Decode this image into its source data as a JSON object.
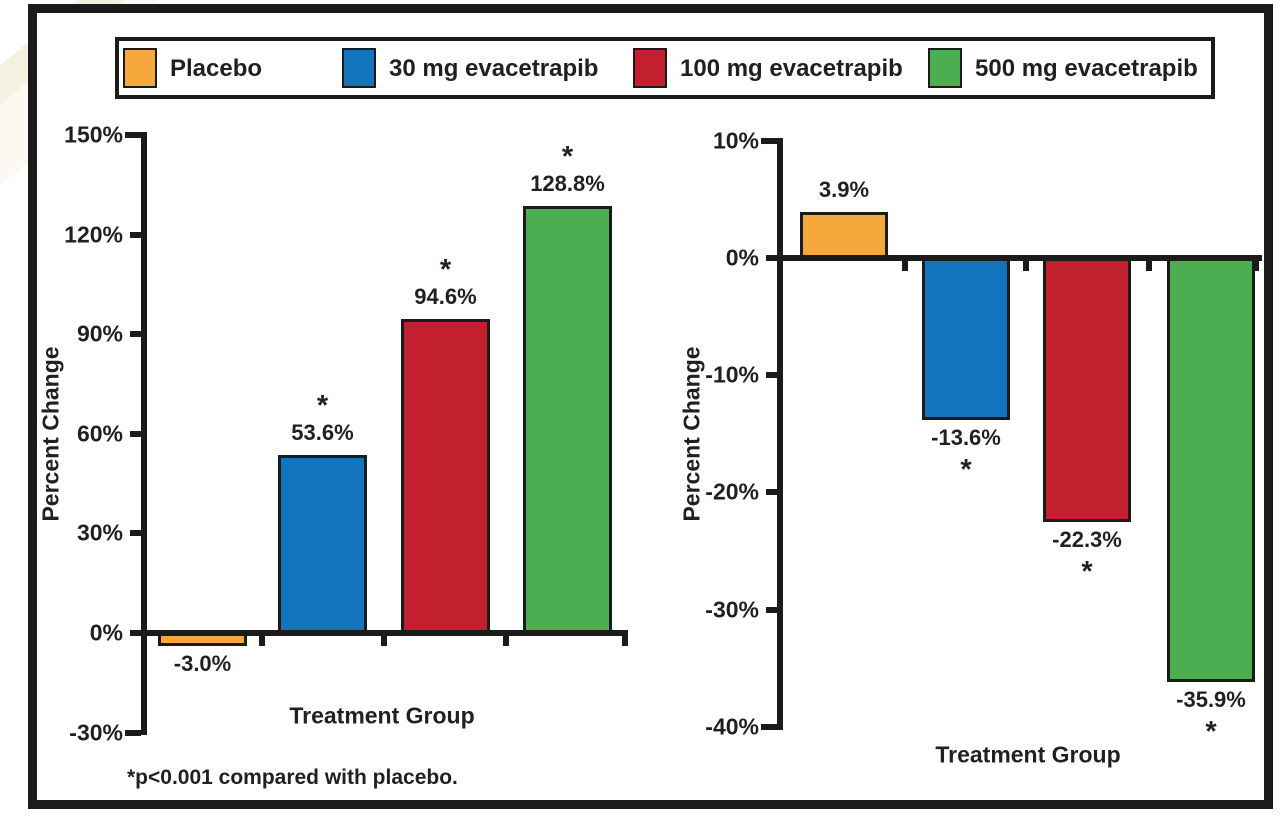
{
  "figure": {
    "footnote": "*p<0.001 compared with placebo.",
    "significance_marker": "*",
    "legend": [
      {
        "label": "Placebo",
        "color": "#F6A83C"
      },
      {
        "label": "30 mg evacetrapib",
        "color": "#1274BC"
      },
      {
        "label": "100 mg evacetrapib",
        "color": "#C2202F"
      },
      {
        "label": "500 mg evacetrapib",
        "color": "#4BAE50"
      }
    ],
    "frame_color": "#1b1b1b",
    "text_color": "#231F20"
  },
  "chart_data": [
    {
      "type": "bar",
      "position": "left",
      "xlabel": "Treatment Group",
      "ylabel": "Percent Change",
      "categories": [
        "Placebo",
        "30 mg evacetrapib",
        "100 mg evacetrapib",
        "500 mg evacetrapib"
      ],
      "values": [
        -3.0,
        53.6,
        94.6,
        128.8
      ],
      "value_labels": [
        "-3.0%",
        "53.6%",
        "94.6%",
        "128.8%"
      ],
      "significant": [
        false,
        true,
        true,
        true
      ],
      "ylim": [
        -30,
        150
      ],
      "yticks": [
        150,
        120,
        90,
        60,
        30,
        0,
        -30
      ],
      "ytick_labels": [
        "150%",
        "120%",
        "90%",
        "60%",
        "30%",
        "0%",
        "-30%"
      ],
      "grid": false,
      "legend_position": "top-shared"
    },
    {
      "type": "bar",
      "position": "right",
      "xlabel": "Treatment Group",
      "ylabel": "Percent Change",
      "categories": [
        "Placebo",
        "30 mg evacetrapib",
        "100 mg evacetrapib",
        "500 mg evacetrapib"
      ],
      "values": [
        3.9,
        -13.6,
        -22.3,
        -35.9
      ],
      "value_labels": [
        "3.9%",
        "-13.6%",
        "-22.3%",
        "-35.9%"
      ],
      "significant": [
        false,
        true,
        true,
        true
      ],
      "ylim": [
        -40,
        10
      ],
      "yticks": [
        10,
        0,
        -10,
        -20,
        -30,
        -40
      ],
      "ytick_labels": [
        "10%",
        "0%",
        "-10%",
        "-20%",
        "-30%",
        "-40%"
      ],
      "grid": false,
      "legend_position": "top-shared"
    }
  ]
}
